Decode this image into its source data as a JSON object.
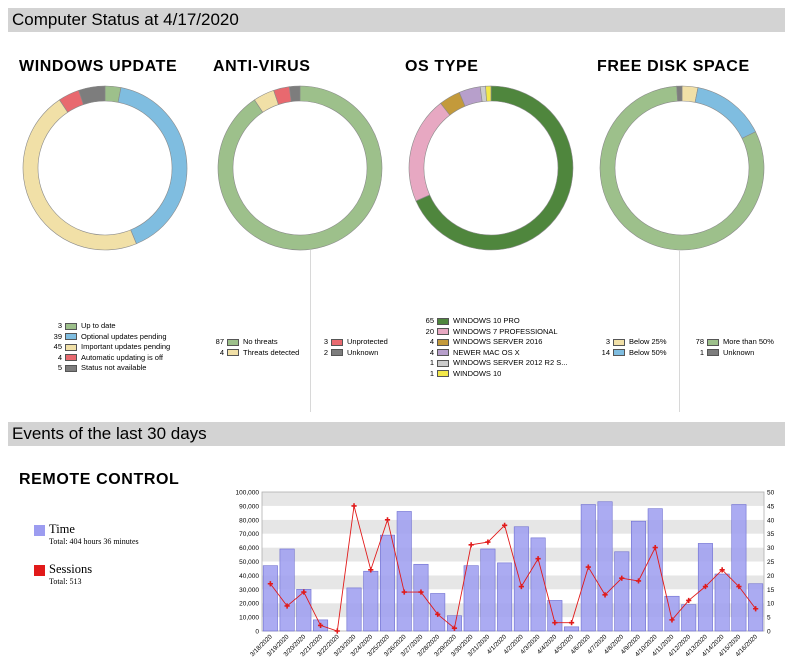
{
  "sections": {
    "status_title": "Computer Status at 4/17/2020",
    "events_title": "Events of the last 30 days"
  },
  "widgets": {
    "windows_update": {
      "title": "WINDOWS UPDATE",
      "legend": [
        {
          "count": "3",
          "label": "Up to date",
          "color": "#9dc08b"
        },
        {
          "count": "39",
          "label": "Optional updates pending",
          "color": "#7fbde0"
        },
        {
          "count": "45",
          "label": "Important updates pending",
          "color": "#f1e0a7"
        },
        {
          "count": "4",
          "label": "Automatic updating is off",
          "color": "#e8696f"
        },
        {
          "count": "5",
          "label": "Status not available",
          "color": "#7d7d7d"
        }
      ]
    },
    "antivirus": {
      "title": "ANTI-VIRUS",
      "legend": [
        {
          "count": "87",
          "label": "No threats",
          "color": "#9dc08b"
        },
        {
          "count": "4",
          "label": "Threats detected",
          "color": "#f1e0a7"
        },
        {
          "count": "3",
          "label": "Unprotected",
          "color": "#e8696f"
        },
        {
          "count": "2",
          "label": "Unknown",
          "color": "#7d7d7d"
        }
      ]
    },
    "os_type": {
      "title": "OS TYPE",
      "legend": [
        {
          "count": "65",
          "label": "WINDOWS 10 PRO",
          "color": "#4f863d"
        },
        {
          "count": "20",
          "label": "WINDOWS 7 PROFESSIONAL",
          "color": "#e7a8c2"
        },
        {
          "count": "4",
          "label": "WINDOWS SERVER 2016",
          "color": "#c39a3b"
        },
        {
          "count": "4",
          "label": "NEWER MAC OS X",
          "color": "#b79fcb"
        },
        {
          "count": "1",
          "label": "WINDOWS SERVER 2012 R2 S...",
          "color": "#cccccc"
        },
        {
          "count": "1",
          "label": "WINDOWS 10",
          "color": "#f2e84a"
        }
      ]
    },
    "disk_space": {
      "title": "FREE DISK SPACE",
      "legend": [
        {
          "count": "3",
          "label": "Below 25%",
          "color": "#f1e0a7"
        },
        {
          "count": "14",
          "label": "Below 50%",
          "color": "#7fbde0"
        },
        {
          "count": "78",
          "label": "More than 50%",
          "color": "#9dc08b"
        },
        {
          "count": "1",
          "label": "Unknown",
          "color": "#7d7d7d"
        }
      ]
    }
  },
  "remote_control": {
    "title": "REMOTE CONTROL",
    "time_label": "Time",
    "time_total": "Total: 404 hours 36 minutes",
    "time_color": "#9c9cf0",
    "sessions_label": "Sessions",
    "sessions_total": "Total: 513",
    "sessions_color": "#e11a1a"
  },
  "chart_data": {
    "type": "bar",
    "categories": [
      "3/18/2020",
      "3/19/2020",
      "3/20/2020",
      "3/21/2020",
      "3/22/2020",
      "3/23/2020",
      "3/24/2020",
      "3/25/2020",
      "3/26/2020",
      "3/27/2020",
      "3/28/2020",
      "3/29/2020",
      "3/30/2020",
      "3/31/2020",
      "4/1/2020",
      "4/2/2020",
      "4/3/2020",
      "4/4/2020",
      "4/5/2020",
      "4/6/2020",
      "4/7/2020",
      "4/8/2020",
      "4/9/2020",
      "4/10/2020",
      "4/11/2020",
      "4/12/2020",
      "4/13/2020",
      "4/14/2020",
      "4/15/2020",
      "4/16/2020"
    ],
    "series": [
      {
        "name": "Time",
        "axis": "left",
        "type": "bar",
        "color": "#9c9cf0",
        "values": [
          47000,
          59000,
          30000,
          8000,
          0,
          31000,
          43000,
          69000,
          86000,
          48000,
          27000,
          11000,
          47000,
          59000,
          49000,
          75000,
          67000,
          22000,
          3000,
          91000,
          93000,
          57000,
          79000,
          88000,
          25000,
          19000,
          63000,
          41000,
          91000,
          34000
        ]
      },
      {
        "name": "Sessions",
        "axis": "right",
        "type": "line",
        "color": "#e11a1a",
        "values": [
          17,
          9,
          14,
          2,
          0,
          45,
          22,
          40,
          14,
          14,
          6,
          1,
          31,
          32,
          38,
          16,
          26,
          3,
          3,
          23,
          13,
          19,
          18,
          30,
          4,
          11,
          16,
          22,
          16,
          8
        ]
      }
    ],
    "ylim_left": [
      0,
      100000
    ],
    "yticks_left": [
      "0",
      "10,000",
      "20,000",
      "30,000",
      "40,000",
      "50,000",
      "60,000",
      "70,000",
      "80,000",
      "90,000",
      "100,000"
    ],
    "ylim_right": [
      0,
      50
    ],
    "yticks_right": [
      "0",
      "5",
      "10",
      "15",
      "20",
      "25",
      "30",
      "35",
      "40",
      "45",
      "50"
    ],
    "grid": true
  }
}
